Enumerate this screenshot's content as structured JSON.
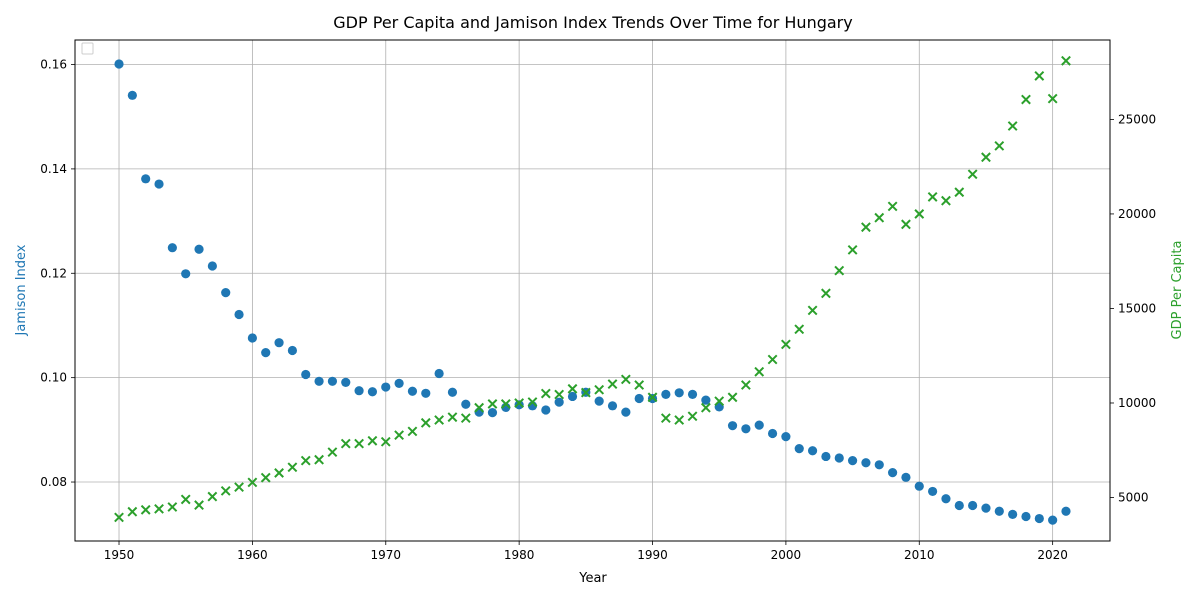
{
  "chart_data": {
    "type": "scatter",
    "title": "GDP Per Capita and Jamison Index Trends Over Time for Hungary",
    "xlabel": "Year",
    "ylabel_left": "Jamison Index",
    "ylabel_right": "GDP Per Capita",
    "xlim": [
      1946.7,
      2024.3
    ],
    "ylim_left": [
      0.0687,
      0.1647
    ],
    "ylim_right": [
      2700,
      29200
    ],
    "x_ticks": [
      1950,
      1960,
      1970,
      1980,
      1990,
      2000,
      2010,
      2020
    ],
    "y_left_ticks": [
      "0.08",
      "0.10",
      "0.12",
      "0.14",
      "0.16"
    ],
    "y_left_tick_values": [
      0.08,
      0.1,
      0.12,
      0.14,
      0.16
    ],
    "y_right_ticks": [
      "5000",
      "10000",
      "15000",
      "20000",
      "25000"
    ],
    "y_right_tick_values": [
      5000,
      10000,
      15000,
      20000,
      25000
    ],
    "grid": true,
    "legend_position": "upper-left",
    "colors": {
      "jamison": "#1f77b4",
      "gdp": "#2ca02c",
      "grid": "#b0b0b0"
    },
    "series": [
      {
        "axis": "left",
        "marker": "circle",
        "x": [
          1950,
          1951,
          1952,
          1953,
          1954,
          1955,
          1956,
          1957,
          1958,
          1959,
          1960,
          1961,
          1962,
          1963,
          1964,
          1965,
          1966,
          1967,
          1968,
          1969,
          1970,
          1971,
          1972,
          1973,
          1974,
          1975,
          1976,
          1977,
          1978,
          1979,
          1980,
          1981,
          1982,
          1983,
          1984,
          1985,
          1986,
          1987,
          1988,
          1989,
          1990,
          1991,
          1992,
          1993,
          1994,
          1995,
          1996,
          1997,
          1998,
          1999,
          2000,
          2001,
          2002,
          2003,
          2004,
          2005,
          2006,
          2007,
          2008,
          2009,
          2010,
          2011,
          2012,
          2013,
          2014,
          2015,
          2016,
          2017,
          2018,
          2019,
          2020,
          2021
        ],
        "y": [
          0.1601,
          0.1541,
          0.1381,
          0.1371,
          0.1249,
          0.1199,
          0.1246,
          0.1214,
          0.1163,
          0.1121,
          0.1076,
          0.1048,
          0.1067,
          0.1052,
          0.1006,
          0.0993,
          0.0993,
          0.0991,
          0.0975,
          0.0973,
          0.0982,
          0.0989,
          0.0974,
          0.097,
          0.1008,
          0.0972,
          0.0949,
          0.0934,
          0.0933,
          0.0943,
          0.0948,
          0.0946,
          0.0938,
          0.0953,
          0.0964,
          0.0972,
          0.0955,
          0.0946,
          0.0934,
          0.096,
          0.096,
          0.0968,
          0.0971,
          0.0968,
          0.0957,
          0.0944,
          0.0908,
          0.0902,
          0.0909,
          0.0893,
          0.0887,
          0.0864,
          0.086,
          0.0849,
          0.0846,
          0.0841,
          0.0837,
          0.0833,
          0.0818,
          0.0809,
          0.0792,
          0.0782,
          0.0768,
          0.0755,
          0.0755,
          0.075,
          0.0744,
          0.0738,
          0.0734,
          0.073,
          0.0727,
          0.0744
        ]
      },
      {
        "axis": "right",
        "marker": "x",
        "x": [
          1950,
          1951,
          1952,
          1953,
          1954,
          1955,
          1956,
          1957,
          1958,
          1959,
          1960,
          1961,
          1962,
          1963,
          1964,
          1965,
          1966,
          1967,
          1968,
          1969,
          1970,
          1971,
          1972,
          1973,
          1974,
          1975,
          1976,
          1977,
          1978,
          1979,
          1980,
          1981,
          1982,
          1983,
          1984,
          1985,
          1986,
          1987,
          1988,
          1989,
          1990,
          1991,
          1992,
          1993,
          1994,
          1995,
          1996,
          1997,
          1998,
          1999,
          2000,
          2001,
          2002,
          2003,
          2004,
          2005,
          2006,
          2007,
          2008,
          2009,
          2010,
          2011,
          2012,
          2013,
          2014,
          2015,
          2016,
          2017,
          2018,
          2019,
          2020,
          2021
        ],
        "y": [
          3950,
          4250,
          4350,
          4400,
          4500,
          4900,
          4600,
          5050,
          5350,
          5550,
          5800,
          6050,
          6300,
          6600,
          6950,
          7000,
          7400,
          7850,
          7850,
          8000,
          7950,
          8300,
          8500,
          8950,
          9100,
          9250,
          9200,
          9750,
          9950,
          9950,
          10000,
          10050,
          10500,
          10450,
          10750,
          10550,
          10700,
          11000,
          11250,
          10950,
          10300,
          9200,
          9100,
          9300,
          9750,
          10100,
          10300,
          10950,
          11650,
          12300,
          13100,
          13900,
          14900,
          15800,
          17000,
          18100,
          19300,
          19800,
          20400,
          19450,
          20000,
          20900,
          20700,
          21150,
          22100,
          23000,
          23600,
          24650,
          26050,
          27300,
          26100,
          28100
        ]
      }
    ]
  }
}
